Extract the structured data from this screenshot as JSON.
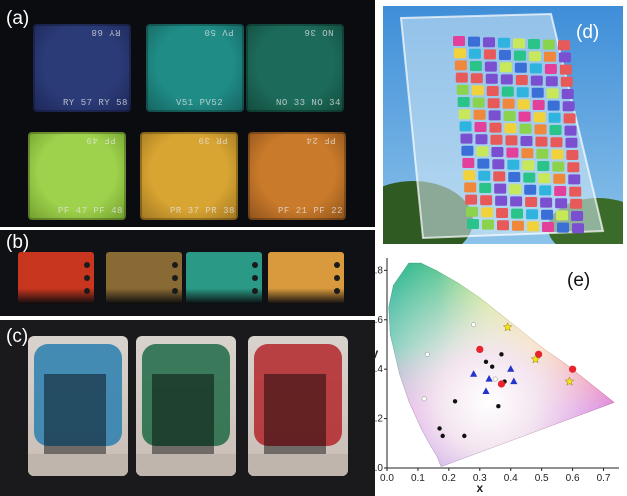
{
  "panels": {
    "a": {
      "label": "(a)",
      "samples": [
        {
          "top": "RY 68",
          "bottom": "RY 57  RY 58",
          "color": "#2b3b78",
          "edge": "#1d2757"
        },
        {
          "top": "PV 50",
          "bottom": "V51  PV52",
          "color": "#1f8c86",
          "edge": "#17625e"
        },
        {
          "top": "NO 36",
          "bottom": "NO 33  NO 34",
          "color": "#1c6b5a",
          "edge": "#134a3d"
        },
        {
          "top": "PF 49",
          "bottom": "PF 47  PF 48",
          "color": "#9fd24c",
          "edge": "#6f9c2d"
        },
        {
          "top": "PR 39",
          "bottom": "PR 37  PR 38",
          "color": "#d9a532",
          "edge": "#9d7420"
        },
        {
          "top": "PF 24",
          "bottom": "PF 21  PF 22",
          "color": "#c97a2a",
          "edge": "#8c511b"
        }
      ]
    },
    "b": {
      "label": "(b)",
      "strips": [
        "#c8361f",
        "#8a6a34",
        "#2a9a86",
        "#d89a3c"
      ]
    },
    "c": {
      "label": "(c)",
      "tints": [
        "#2a7fb0",
        "#1f6a45",
        "#b3262a"
      ]
    },
    "d": {
      "label": "(d)",
      "mosaic_colors": [
        "#e2409a",
        "#2fb4e0",
        "#8bd34c",
        "#f2d23b",
        "#7a4fd0",
        "#2ac48a",
        "#f0883b",
        "#3b6fd8",
        "#c7e85a",
        "#e85a5a"
      ]
    },
    "e": {
      "label": "(e)",
      "chart_data": {
        "type": "scatter",
        "title": "",
        "xlabel": "x",
        "ylabel": "y",
        "xlim": [
          0.0,
          0.75
        ],
        "ylim": [
          0.0,
          0.85
        ],
        "xticks": [
          "0.0",
          "0.1",
          "0.2",
          "0.3",
          "0.4",
          "0.5",
          "0.6",
          "0.7"
        ],
        "yticks": [
          "0.0",
          "0.2",
          "0.4",
          "0.6",
          "0.8"
        ],
        "series": [
          {
            "marker": "circle-black",
            "color": "#111111",
            "points": [
              [
                0.17,
                0.16
              ],
              [
                0.18,
                0.13
              ],
              [
                0.22,
                0.27
              ],
              [
                0.25,
                0.13
              ],
              [
                0.32,
                0.43
              ],
              [
                0.34,
                0.41
              ],
              [
                0.36,
                0.25
              ],
              [
                0.38,
                0.35
              ],
              [
                0.37,
                0.46
              ]
            ]
          },
          {
            "marker": "circle-white",
            "color": "#ffffff",
            "points": [
              [
                0.13,
                0.46
              ],
              [
                0.28,
                0.58
              ],
              [
                0.12,
                0.28
              ],
              [
                0.35,
                0.36
              ]
            ]
          },
          {
            "marker": "circle-red",
            "color": "#e8232b",
            "points": [
              [
                0.3,
                0.48
              ],
              [
                0.37,
                0.34
              ],
              [
                0.49,
                0.46
              ],
              [
                0.6,
                0.4
              ]
            ]
          },
          {
            "marker": "triangle-blue",
            "color": "#2433c9",
            "points": [
              [
                0.28,
                0.38
              ],
              [
                0.33,
                0.36
              ],
              [
                0.32,
                0.31
              ],
              [
                0.4,
                0.4
              ],
              [
                0.41,
                0.35
              ]
            ]
          },
          {
            "marker": "star-yellow",
            "color": "#f5e21a",
            "points": [
              [
                0.39,
                0.57
              ],
              [
                0.48,
                0.44
              ],
              [
                0.59,
                0.35
              ]
            ]
          }
        ]
      }
    }
  }
}
